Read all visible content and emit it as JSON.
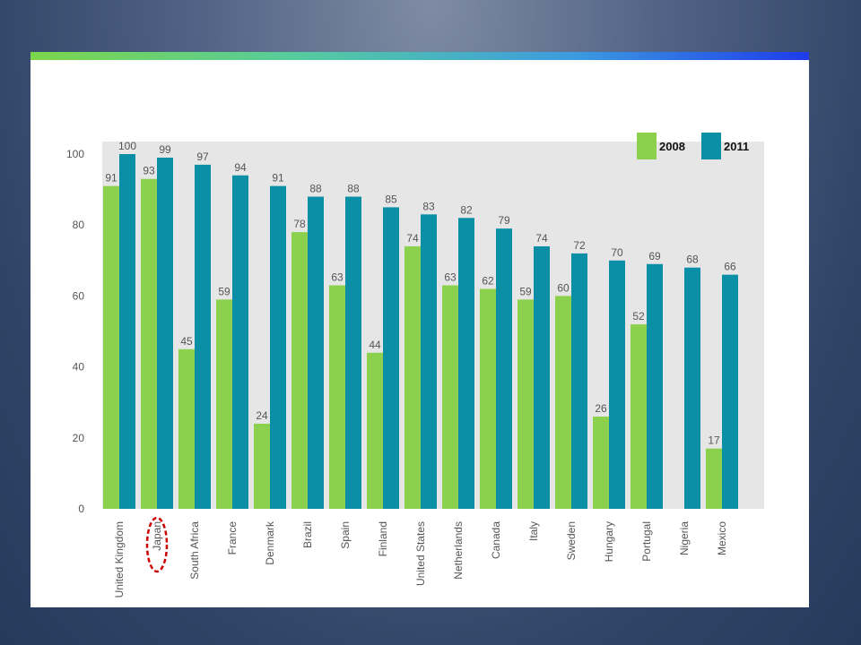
{
  "chart_data": {
    "type": "bar",
    "title": "",
    "xlabel": "",
    "ylabel": "",
    "ylim": [
      0,
      100
    ],
    "yticks": [
      0,
      20,
      40,
      60,
      80,
      100
    ],
    "categories": [
      "United Kingdom",
      "Japan",
      "South Africa",
      "France",
      "Denmark",
      "Brazil",
      "Spain",
      "Finland",
      "United States",
      "Netherlands",
      "Canada",
      "Italy",
      "Sweden",
      "Hungary",
      "Portugal",
      "Nigeria",
      "Mexico"
    ],
    "series": [
      {
        "name": "2008",
        "color": "#8cd14e",
        "values": [
          91,
          93,
          45,
          59,
          24,
          78,
          63,
          44,
          74,
          63,
          62,
          59,
          60,
          26,
          52,
          null,
          17
        ]
      },
      {
        "name": "2011",
        "color": "#0b8fa6",
        "values": [
          100,
          99,
          97,
          94,
          91,
          88,
          88,
          85,
          83,
          82,
          79,
          74,
          72,
          70,
          69,
          68,
          66
        ]
      }
    ],
    "legend_position": "top-right",
    "grid": false,
    "annotations": [
      {
        "type": "dashed-ellipse",
        "target": "Japan",
        "color": "#cc0000"
      }
    ]
  },
  "colors": {
    "plot_background": "#e6e6e6",
    "series_2008": "#8cd14e",
    "series_2011": "#0b8fa6"
  }
}
